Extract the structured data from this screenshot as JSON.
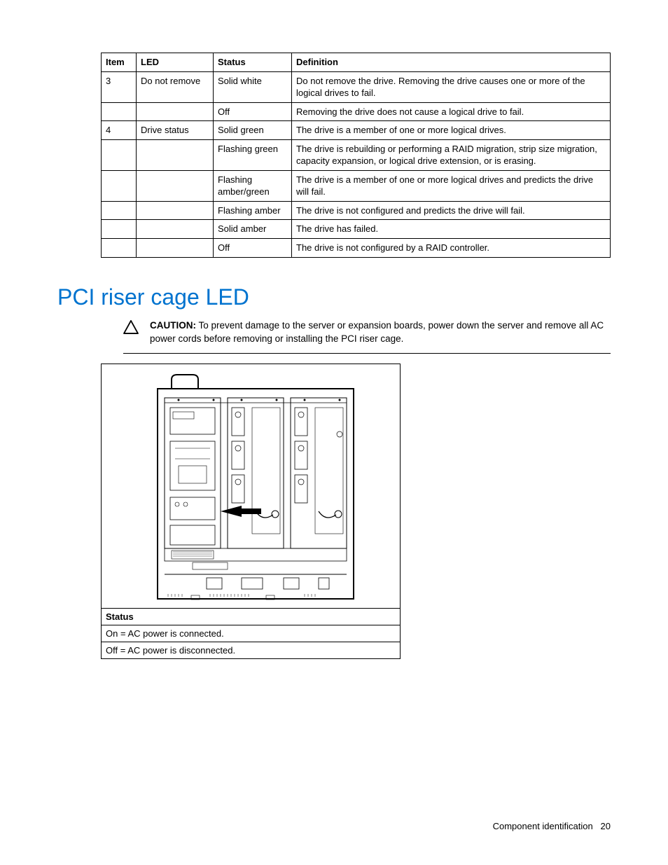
{
  "led_table": {
    "headers": [
      "Item",
      "LED",
      "Status",
      "Definition"
    ],
    "rows": [
      [
        "3",
        "Do not remove",
        "Solid white",
        "Do not remove the drive. Removing the drive causes one or more of the logical drives to fail."
      ],
      [
        "",
        "",
        "Off",
        "Removing the drive does not cause a logical drive to fail."
      ],
      [
        "4",
        "Drive status",
        "Solid green",
        "The drive is a member of one or more logical drives."
      ],
      [
        "",
        "",
        "Flashing green",
        "The drive is rebuilding or performing a RAID migration, strip size migration, capacity expansion, or logical drive extension, or is erasing."
      ],
      [
        "",
        "",
        "Flashing amber/green",
        "The drive is a member of one or more logical drives and predicts the drive will fail."
      ],
      [
        "",
        "",
        "Flashing amber",
        "The drive is not configured and predicts the drive will fail."
      ],
      [
        "",
        "",
        "Solid amber",
        "The drive has failed."
      ],
      [
        "",
        "",
        "Off",
        "The drive is not configured by a RAID controller."
      ]
    ]
  },
  "heading": "PCI riser cage LED",
  "caution": {
    "label": "CAUTION:",
    "text": "To prevent damage to the server or expansion boards, power down the server and remove all AC power cords before removing or installing the PCI riser cage."
  },
  "status_table": {
    "header": "Status",
    "rows": [
      "On = AC power is connected.",
      "Off = AC power is disconnected."
    ]
  },
  "footer": {
    "section": "Component identification",
    "page": "20"
  }
}
